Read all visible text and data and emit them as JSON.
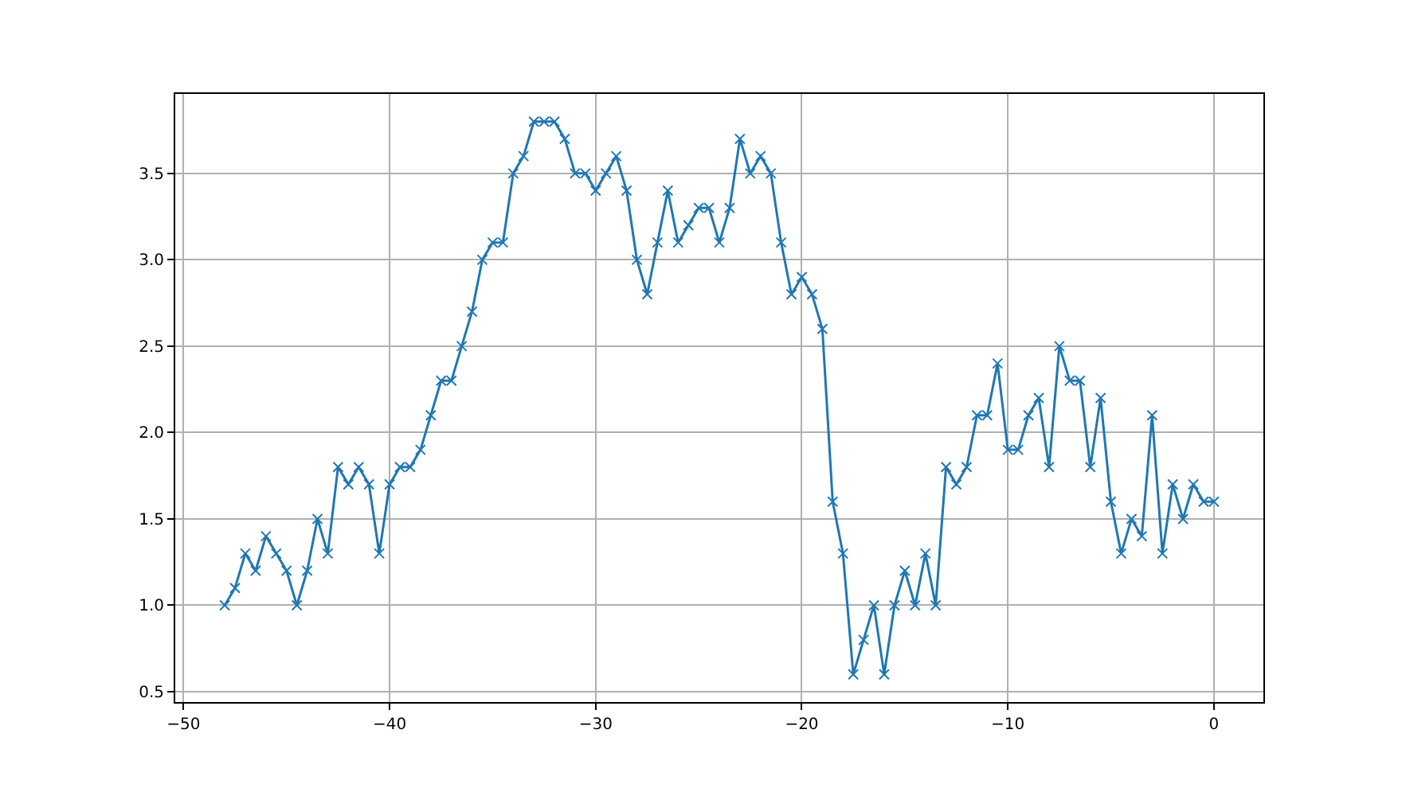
{
  "chart_data": {
    "type": "line",
    "x": [
      -48,
      -47.5,
      -47,
      -46.5,
      -46,
      -45.5,
      -45,
      -44.5,
      -44,
      -43.5,
      -43,
      -42.5,
      -42,
      -41.5,
      -41,
      -40.5,
      -40,
      -39.5,
      -39,
      -38.5,
      -38,
      -37.5,
      -37,
      -36.5,
      -36,
      -35.5,
      -35,
      -34.5,
      -34,
      -33.5,
      -33,
      -32.5,
      -32,
      -31.5,
      -31,
      -30.5,
      -30,
      -29.5,
      -29,
      -28.5,
      -28,
      -27.5,
      -27,
      -26.5,
      -26,
      -25.5,
      -25,
      -24.5,
      -24,
      -23.5,
      -23,
      -22.5,
      -22,
      -21.5,
      -21,
      -20.5,
      -20,
      -19.5,
      -19,
      -18.5,
      -18,
      -17.5,
      -17,
      -16.5,
      -16,
      -15.5,
      -15,
      -14.5,
      -14,
      -13.5,
      -13,
      -12.5,
      -12,
      -11.5,
      -11,
      -10.5,
      -10,
      -9.5,
      -9,
      -8.5,
      -8,
      -7.5,
      -7,
      -6.5,
      -6,
      -5.5,
      -5,
      -4.5,
      -4,
      -3.5,
      -3,
      -2.5,
      -2,
      -1.5,
      -1,
      -0.5,
      0
    ],
    "series": [
      {
        "color": "#1f77b4",
        "values": [
          1.0,
          1.1,
          1.3,
          1.2,
          1.4,
          1.3,
          1.2,
          1.0,
          1.2,
          1.5,
          1.3,
          1.8,
          1.7,
          1.8,
          1.7,
          1.3,
          1.7,
          1.8,
          1.8,
          1.9,
          2.1,
          2.3,
          2.3,
          2.5,
          2.7,
          3.0,
          3.1,
          3.1,
          3.5,
          3.6,
          3.8,
          3.8,
          3.8,
          3.7,
          3.5,
          3.5,
          3.4,
          3.5,
          3.6,
          3.4,
          3.0,
          2.8,
          3.1,
          3.4,
          3.1,
          3.2,
          3.3,
          3.3,
          3.1,
          3.3,
          3.7,
          3.5,
          3.6,
          3.5,
          3.1,
          2.8,
          2.9,
          2.8,
          2.6,
          1.6,
          1.3,
          0.6,
          0.8,
          1.0,
          0.6,
          1.0,
          1.2,
          1.0,
          1.3,
          1.0,
          1.8,
          1.7,
          1.8,
          2.1,
          2.1,
          2.4,
          1.9,
          1.9,
          2.1,
          2.2,
          1.8,
          2.5,
          2.3,
          2.3,
          1.8,
          2.2,
          1.6,
          1.3,
          1.5,
          1.4,
          2.1,
          1.3,
          1.7,
          1.5,
          1.7,
          1.6,
          1.6
        ]
      }
    ],
    "xlim": [
      -50.4,
      2.4
    ],
    "xticks": [
      {
        "value": -50,
        "label": "−50"
      },
      {
        "value": -40,
        "label": "−40"
      },
      {
        "value": -30,
        "label": "−30"
      },
      {
        "value": -20,
        "label": "−20"
      },
      {
        "value": -10,
        "label": "−10"
      },
      {
        "value": 0,
        "label": "0"
      }
    ],
    "ylim": [
      0.44,
      3.96
    ],
    "yticks": [
      {
        "value": 0.5,
        "label": "0.5"
      },
      {
        "value": 1,
        "label": "1.0"
      },
      {
        "value": 1.5,
        "label": "1.5"
      },
      {
        "value": 2,
        "label": "2.0"
      },
      {
        "value": 2.5,
        "label": "2.5"
      },
      {
        "value": 3,
        "label": "3.0"
      },
      {
        "value": 3.5,
        "label": "3.5"
      }
    ],
    "grid": true,
    "marker": "cross",
    "line_style": "solid"
  }
}
